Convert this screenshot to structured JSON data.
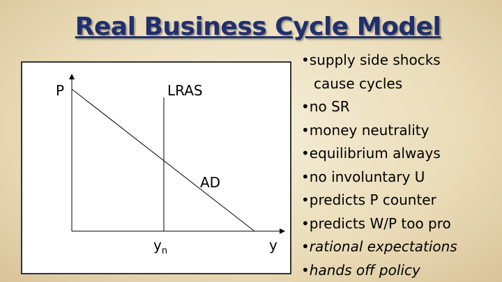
{
  "title": "Real Business Cycle Model",
  "diagram": {
    "price_axis": "P",
    "output_axis": "y",
    "lras": "LRAS",
    "ad": "AD",
    "potential_output": {
      "base": "y",
      "subscript": "n"
    }
  },
  "bullets": [
    [
      "supply side shocks",
      "cause cycles"
    ],
    [
      "no SR"
    ],
    [
      "money neutrality"
    ],
    [
      "equilibrium always"
    ],
    [
      "no involuntary U"
    ],
    [
      "predicts P counter"
    ],
    [
      "predicts W/P too pro"
    ],
    [
      "rational expectations"
    ],
    [
      "hands off policy"
    ]
  ]
}
